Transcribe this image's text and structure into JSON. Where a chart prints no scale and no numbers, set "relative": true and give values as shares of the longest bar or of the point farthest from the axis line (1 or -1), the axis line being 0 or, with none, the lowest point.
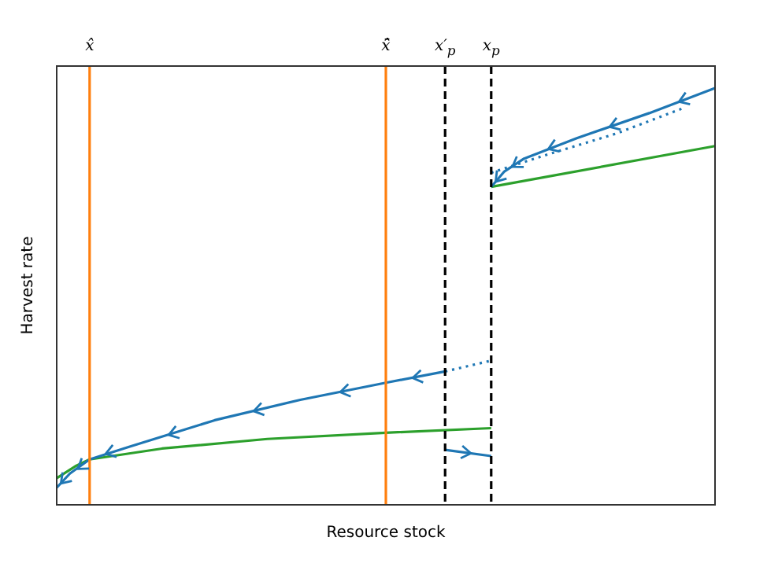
{
  "chart_data": {
    "type": "line",
    "relative": true,
    "xlabel": "Resource stock",
    "ylabel": "Harvest rate",
    "tick_labels": "x",
    "grid": false,
    "legend": false,
    "categories": [
      null,
      null,
      null,
      null,
      null,
      "x̂",
      null,
      null,
      null,
      null,
      null,
      null,
      null,
      null,
      null,
      null,
      null,
      null,
      null,
      null,
      null,
      null,
      null,
      null,
      null,
      null,
      null,
      null,
      null,
      null,
      null,
      null,
      null,
      null,
      null,
      null,
      null,
      null,
      null,
      null,
      null,
      null,
      null,
      null,
      null,
      null,
      null,
      null,
      null,
      null,
      "x̄̂",
      null,
      null,
      null,
      null,
      null,
      null,
      null,
      null,
      "x′$_{p}$",
      null,
      null,
      null,
      null,
      null,
      null,
      "x$_{p}$",
      null,
      null,
      null,
      null,
      null,
      null,
      null,
      null,
      null,
      null,
      null,
      null,
      null,
      null,
      null,
      null,
      null,
      null,
      null,
      null,
      null,
      null,
      null,
      null,
      null,
      null,
      null,
      null,
      null,
      null,
      null,
      null,
      null,
      null
    ],
    "series": [
      {
        "color": "#1f77b4",
        "line_style": "solid",
        "values": [
          0.041,
          null,
          0.075,
          null,
          null,
          0.109,
          null,
          null,
          null,
          null,
          null,
          0.139,
          null,
          null,
          null,
          null,
          null,
          null,
          null,
          null,
          null,
          null,
          null,
          null,
          0.203,
          null,
          null,
          null,
          null,
          null,
          null,
          null,
          null,
          null,
          null,
          null,
          null,
          0.252,
          null,
          null,
          null,
          null,
          null,
          null,
          null,
          null,
          null,
          null,
          null,
          null,
          0.293,
          null,
          null,
          null,
          null,
          null,
          null,
          null,
          null,
          0.32,
          null,
          null,
          null,
          null,
          null,
          null,
          null,
          null,
          null,
          null,
          null,
          null,
          null,
          null,
          null,
          null,
          null,
          null,
          null,
          null,
          null,
          null,
          null,
          null,
          null,
          null,
          null,
          null,
          null,
          null,
          null,
          null,
          null,
          null,
          null,
          null,
          null,
          null,
          null,
          null,
          null
        ]
      },
      {
        "color": "#1f77b4",
        "line_style": "solid",
        "values": [
          null,
          null,
          null,
          null,
          null,
          null,
          null,
          null,
          null,
          null,
          null,
          null,
          null,
          null,
          null,
          null,
          null,
          null,
          null,
          null,
          null,
          null,
          null,
          null,
          null,
          null,
          null,
          null,
          null,
          null,
          null,
          null,
          null,
          null,
          null,
          null,
          null,
          null,
          null,
          null,
          null,
          null,
          null,
          null,
          null,
          null,
          null,
          null,
          null,
          null,
          null,
          null,
          null,
          null,
          null,
          null,
          null,
          null,
          null,
          0.132,
          null,
          null,
          null,
          null,
          null,
          null,
          0.117,
          null,
          null,
          null,
          null,
          null,
          null,
          null,
          null,
          null,
          null,
          null,
          null,
          null,
          null,
          null,
          null,
          null,
          null,
          null,
          null,
          null,
          null,
          null,
          null,
          null,
          null,
          null,
          null,
          null,
          null,
          null,
          null,
          null,
          null
        ]
      },
      {
        "color": "#1f77b4",
        "line_style": "solid",
        "values": [
          null,
          null,
          null,
          null,
          null,
          null,
          null,
          null,
          null,
          null,
          null,
          null,
          null,
          null,
          null,
          null,
          null,
          null,
          null,
          null,
          null,
          null,
          null,
          null,
          null,
          null,
          null,
          null,
          null,
          null,
          null,
          null,
          null,
          null,
          null,
          null,
          null,
          null,
          null,
          null,
          null,
          null,
          null,
          null,
          null,
          null,
          null,
          null,
          null,
          null,
          null,
          null,
          null,
          null,
          null,
          null,
          null,
          null,
          null,
          null,
          null,
          null,
          null,
          null,
          null,
          null,
          0.763,
          null,
          0.8,
          null,
          null,
          0.831,
          null,
          null,
          null,
          null,
          null,
          null,
          null,
          0.88,
          null,
          null,
          null,
          null,
          null,
          null,
          null,
          null,
          null,
          null,
          0.94,
          null,
          null,
          null,
          null,
          null,
          null,
          null,
          null,
          null,
          1.0
        ]
      },
      {
        "color": "#1f77b4",
        "line_style": "dotted",
        "values": [
          null,
          null,
          null,
          null,
          null,
          null,
          null,
          null,
          null,
          null,
          null,
          null,
          null,
          null,
          null,
          null,
          null,
          null,
          null,
          null,
          null,
          null,
          null,
          null,
          null,
          null,
          null,
          null,
          null,
          null,
          null,
          null,
          null,
          null,
          null,
          null,
          null,
          null,
          null,
          null,
          null,
          null,
          null,
          null,
          null,
          null,
          null,
          null,
          null,
          null,
          null,
          null,
          null,
          null,
          null,
          null,
          null,
          null,
          null,
          0.32,
          null,
          null,
          null,
          null,
          null,
          null,
          0.346,
          null,
          null,
          null,
          null,
          null,
          null,
          null,
          null,
          null,
          null,
          null,
          null,
          null,
          null,
          null,
          null,
          null,
          null,
          null,
          null,
          null,
          null,
          null,
          null,
          null,
          null,
          null,
          null,
          null,
          null,
          null,
          null,
          null,
          null
        ]
      },
      {
        "color": "#1f77b4",
        "line_style": "dotted",
        "values": [
          null,
          null,
          null,
          null,
          null,
          null,
          null,
          null,
          null,
          null,
          null,
          null,
          null,
          null,
          null,
          null,
          null,
          null,
          null,
          null,
          null,
          null,
          null,
          null,
          null,
          null,
          null,
          null,
          null,
          null,
          null,
          null,
          null,
          null,
          null,
          null,
          null,
          null,
          null,
          null,
          null,
          null,
          null,
          null,
          null,
          null,
          null,
          null,
          null,
          null,
          null,
          null,
          null,
          null,
          null,
          null,
          null,
          null,
          null,
          null,
          null,
          null,
          null,
          null,
          null,
          null,
          0.797,
          null,
          null,
          null,
          null,
          null,
          null,
          null,
          0.838,
          null,
          null,
          null,
          null,
          null,
          null,
          null,
          null,
          null,
          null,
          0.891,
          null,
          null,
          null,
          null,
          null,
          null,
          null,
          null,
          null,
          0.951,
          null,
          null,
          null,
          null,
          null
        ]
      },
      {
        "color": "#2ca02c",
        "line_style": "solid",
        "values": [
          0.064,
          null,
          null,
          0.094,
          null,
          0.109,
          null,
          null,
          null,
          null,
          null,
          null,
          null,
          null,
          null,
          null,
          0.135,
          null,
          null,
          null,
          null,
          null,
          null,
          null,
          null,
          null,
          null,
          null,
          null,
          null,
          null,
          null,
          0.158,
          null,
          null,
          null,
          null,
          null,
          null,
          null,
          null,
          null,
          null,
          null,
          null,
          null,
          null,
          null,
          null,
          null,
          0.173,
          null,
          null,
          null,
          null,
          null,
          null,
          null,
          null,
          null,
          null,
          null,
          null,
          null,
          null,
          null,
          0.184,
          null,
          null,
          null,
          null,
          null,
          null,
          null,
          null,
          null,
          null,
          null,
          null,
          null,
          null,
          null,
          null,
          null,
          null,
          null,
          null,
          null,
          null,
          null,
          null,
          null,
          null,
          null,
          null,
          null,
          null,
          null,
          null,
          null,
          null
        ]
      },
      {
        "color": "#2ca02c",
        "line_style": "solid",
        "values": [
          null,
          null,
          null,
          null,
          null,
          null,
          null,
          null,
          null,
          null,
          null,
          null,
          null,
          null,
          null,
          null,
          null,
          null,
          null,
          null,
          null,
          null,
          null,
          null,
          null,
          null,
          null,
          null,
          null,
          null,
          null,
          null,
          null,
          null,
          null,
          null,
          null,
          null,
          null,
          null,
          null,
          null,
          null,
          null,
          null,
          null,
          null,
          null,
          null,
          null,
          null,
          null,
          null,
          null,
          null,
          null,
          null,
          null,
          null,
          null,
          null,
          null,
          null,
          null,
          null,
          null,
          0.763,
          null,
          null,
          null,
          null,
          null,
          null,
          null,
          null,
          null,
          null,
          null,
          null,
          null,
          null,
          null,
          null,
          null,
          null,
          null,
          null,
          null,
          null,
          null,
          null,
          null,
          null,
          null,
          null,
          null,
          null,
          null,
          null,
          null,
          0.861
        ]
      }
    ],
    "ref_lines": [
      {
        "axis": "x",
        "value": "x̂",
        "color": "#ff7f0e",
        "line_style": "solid"
      },
      {
        "axis": "x",
        "value": "x̄̂",
        "color": "#ff7f0e",
        "line_style": "solid"
      },
      {
        "axis": "x",
        "value": "x′$_{p}$",
        "color": "#000000",
        "line_style": "dashed"
      },
      {
        "axis": "x",
        "value": "x$_{p}$",
        "color": "#000000",
        "line_style": "dashed"
      }
    ]
  }
}
